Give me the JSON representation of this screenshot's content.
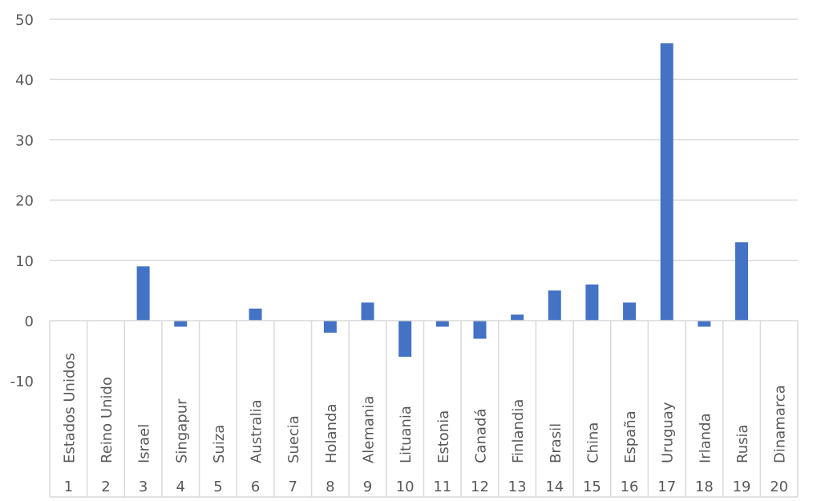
{
  "chart_data": {
    "type": "bar",
    "categories": [
      "Estados Unidos",
      "Reino Unido",
      "Israel",
      "Singapur",
      "Suiza",
      "Australia",
      "Suecia",
      "Holanda",
      "Alemania",
      "Lituania",
      "Estonia",
      "Canadá",
      "Finlandia",
      "Brasil",
      "China",
      "España",
      "Uruguay",
      "Irlanda",
      "Rusia",
      "Dinamarca"
    ],
    "ranks": [
      "1",
      "2",
      "3",
      "4",
      "5",
      "6",
      "7",
      "8",
      "9",
      "10",
      "11",
      "12",
      "13",
      "14",
      "15",
      "16",
      "17",
      "18",
      "19",
      "20"
    ],
    "values": [
      0,
      0,
      9,
      -1,
      0,
      2,
      0,
      -2,
      3,
      -6,
      -1,
      -3,
      1,
      5,
      6,
      3,
      46,
      -1,
      13,
      0
    ],
    "yticks": [
      "50",
      "40",
      "30",
      "20",
      "10",
      "0",
      "-10"
    ],
    "ylim": [
      -10,
      50
    ],
    "grid": true,
    "bar_color": "#4472c4",
    "title": "",
    "xlabel": "",
    "ylabel": ""
  }
}
